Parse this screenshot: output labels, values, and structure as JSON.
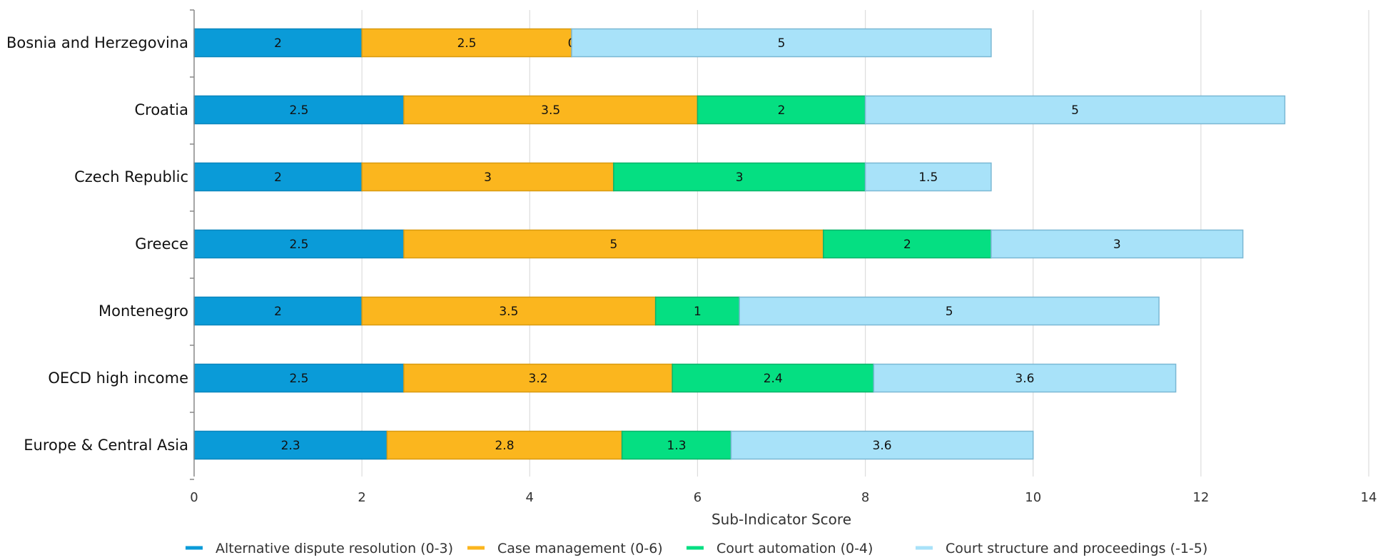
{
  "chart_data": {
    "type": "bar",
    "orientation": "horizontal",
    "stacked": true,
    "categories": [
      "Bosnia and Herzegovina",
      "Croatia",
      "Czech Republic",
      "Greece",
      "Montenegro",
      "OECD high income",
      "Europe & Central Asia"
    ],
    "series": [
      {
        "name": "Alternative dispute resolution (0-3)",
        "color": "#0a9bd8",
        "values": [
          2,
          2.5,
          2,
          2.5,
          2,
          2.5,
          2.3
        ]
      },
      {
        "name": "Case management (0-6)",
        "color": "#fbb61e",
        "values": [
          2.5,
          3.5,
          3,
          5,
          3.5,
          3.2,
          2.8
        ]
      },
      {
        "name": "Court automation (0-4)",
        "color": "#05df82",
        "values": [
          0,
          2,
          3,
          2,
          1,
          2.4,
          1.3
        ]
      },
      {
        "name": "Court structure and proceedings (-1-5)",
        "color": "#a8e2f9",
        "values": [
          5,
          5,
          1.5,
          3,
          5,
          3.6,
          3.6
        ]
      }
    ],
    "xlabel": "Sub-Indicator Score",
    "ylabel": "",
    "xlim": [
      0,
      14
    ],
    "xticks": [
      0,
      2,
      4,
      6,
      8,
      10,
      12,
      14
    ],
    "grid": "vertical",
    "legend": "bottom"
  }
}
